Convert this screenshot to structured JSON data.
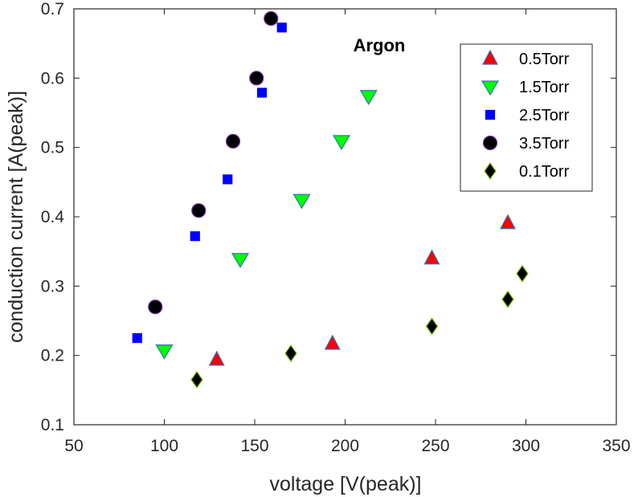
{
  "chart_data": {
    "type": "scatter",
    "title": "",
    "annotation": "Argon",
    "xlabel": "voltage [V(peak)]",
    "ylabel": "conduction current [A(peak)]",
    "xlim": [
      50,
      350
    ],
    "ylim": [
      0.1,
      0.7
    ],
    "xticks": [
      50,
      100,
      150,
      200,
      250,
      300,
      350
    ],
    "yticks": [
      0.1,
      0.2,
      0.3,
      0.4,
      0.5,
      0.6,
      0.7
    ],
    "xtick_labels": [
      "50",
      "100",
      "150",
      "200",
      "250",
      "300",
      "350"
    ],
    "ytick_labels": [
      "0.1",
      "0.2",
      "0.3",
      "0.4",
      "0.5",
      "0.6",
      "0.7"
    ],
    "grid": false,
    "legend_position": "top-right",
    "series": [
      {
        "name": "0.5Torr",
        "marker": "triangle-up",
        "color": "#ff0000",
        "edge": "#3a6fb0",
        "x": [
          129,
          193,
          248,
          290
        ],
        "y": [
          0.194,
          0.217,
          0.34,
          0.391
        ]
      },
      {
        "name": "1.5Torr",
        "marker": "triangle-down",
        "color": "#00ff00",
        "edge": "#3a6fb0",
        "x": [
          100,
          142,
          176,
          198,
          213
        ],
        "y": [
          0.207,
          0.339,
          0.424,
          0.509,
          0.574
        ]
      },
      {
        "name": "2.5Torr",
        "marker": "square",
        "color": "#0000ff",
        "edge": "#0000ff",
        "x": [
          85,
          117,
          135,
          154,
          165
        ],
        "y": [
          0.225,
          0.372,
          0.454,
          0.579,
          0.673
        ]
      },
      {
        "name": "3.5Torr",
        "marker": "circle",
        "color": "#000000",
        "edge": "#7030a0",
        "x": [
          95,
          119,
          138,
          151,
          159
        ],
        "y": [
          0.27,
          0.409,
          0.509,
          0.6,
          0.686
        ]
      },
      {
        "name": "0.1Torr",
        "marker": "diamond",
        "color": "#000000",
        "edge": "#80c000",
        "x": [
          118,
          170,
          248,
          290,
          298
        ],
        "y": [
          0.165,
          0.203,
          0.242,
          0.281,
          0.318
        ]
      }
    ]
  }
}
